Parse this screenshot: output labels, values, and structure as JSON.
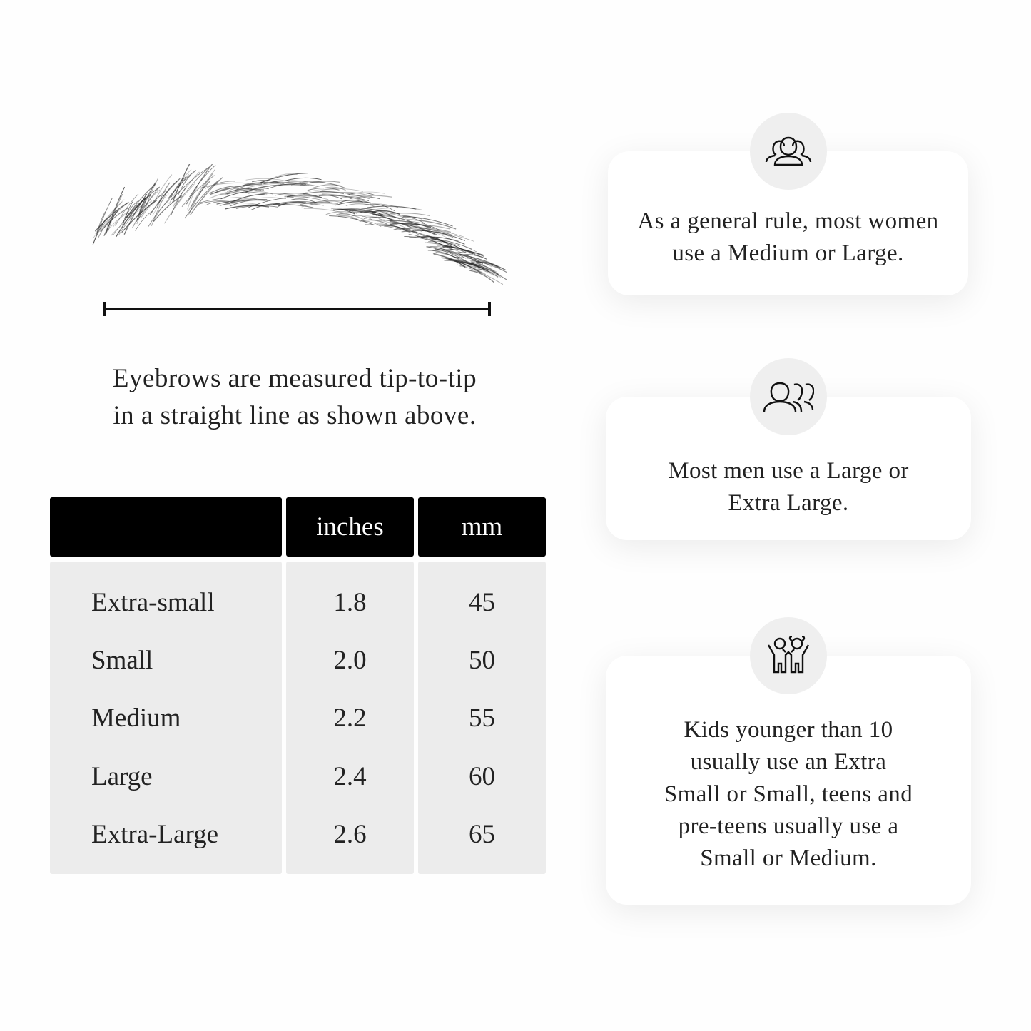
{
  "caption": {
    "line1": "Eyebrows are measured tip-to-tip",
    "line2": "in a straight line as shown above."
  },
  "table": {
    "headers": [
      "",
      "inches",
      "mm"
    ],
    "rows": [
      {
        "size": "Extra-small",
        "inches": "1.8",
        "mm": "45"
      },
      {
        "size": "Small",
        "inches": "2.0",
        "mm": "50"
      },
      {
        "size": "Medium",
        "inches": "2.2",
        "mm": "55"
      },
      {
        "size": "Large",
        "inches": "2.4",
        "mm": "60"
      },
      {
        "size": "Extra-Large",
        "inches": "2.6",
        "mm": "65"
      }
    ]
  },
  "cards": [
    {
      "icon": "women-group-icon",
      "lines": [
        "As a general rule, most women",
        "use a Medium or Large."
      ]
    },
    {
      "icon": "men-group-icon",
      "lines": [
        "Most men use a Large or",
        "Extra Large."
      ]
    },
    {
      "icon": "kids-icon",
      "lines": [
        "Kids younger than 10",
        "usually use an Extra",
        "Small or Small, teens and",
        "pre-teens usually use a",
        "Small or Medium."
      ]
    }
  ],
  "colors": {
    "header_bg": "#000000",
    "cell_bg": "#ececec",
    "icon_circle": "#efefef"
  }
}
